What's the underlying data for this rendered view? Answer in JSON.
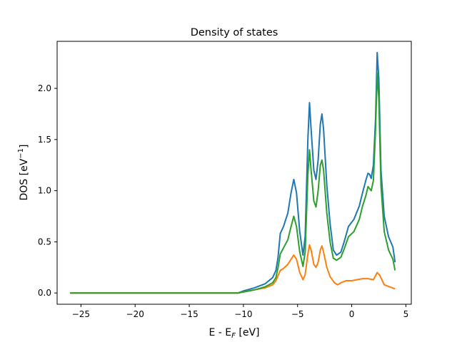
{
  "chart_data": {
    "type": "line",
    "title": "Density of states",
    "xlabel": {
      "main": "E - E",
      "sub": "F",
      "unit": " [eV]"
    },
    "ylabel": {
      "main": "DOS [eV",
      "sup": "−1",
      "end": "]"
    },
    "xlim": [
      -27.2,
      5.5
    ],
    "ylim": [
      -0.11,
      2.46
    ],
    "xticks": [
      -25,
      -20,
      -15,
      -10,
      -5,
      0,
      5
    ],
    "xtick_labels": [
      "−25",
      "−20",
      "−15",
      "−10",
      "−5",
      "0",
      "5"
    ],
    "yticks": [
      0.0,
      0.5,
      1.0,
      1.5,
      2.0
    ],
    "ytick_labels": [
      "0.0",
      "0.5",
      "1.0",
      "1.5",
      "2.0"
    ],
    "grid": false,
    "series": [
      {
        "color": "#1f77b4",
        "points": [
          [
            -26,
            0
          ],
          [
            -10.5,
            0
          ],
          [
            -10,
            0.02
          ],
          [
            -9,
            0.05
          ],
          [
            -8,
            0.09
          ],
          [
            -7.3,
            0.15
          ],
          [
            -7,
            0.22
          ],
          [
            -6.8,
            0.35
          ],
          [
            -6.6,
            0.58
          ],
          [
            -6.3,
            0.65
          ],
          [
            -5.9,
            0.78
          ],
          [
            -5.6,
            0.98
          ],
          [
            -5.35,
            1.11
          ],
          [
            -5.1,
            0.98
          ],
          [
            -4.8,
            0.6
          ],
          [
            -4.5,
            0.37
          ],
          [
            -4.3,
            0.55
          ],
          [
            -4.05,
            1.5
          ],
          [
            -3.9,
            1.86
          ],
          [
            -3.75,
            1.6
          ],
          [
            -3.5,
            1.2
          ],
          [
            -3.3,
            1.11
          ],
          [
            -3.1,
            1.3
          ],
          [
            -2.9,
            1.65
          ],
          [
            -2.75,
            1.75
          ],
          [
            -2.6,
            1.6
          ],
          [
            -2.3,
            1.05
          ],
          [
            -2,
            0.68
          ],
          [
            -1.7,
            0.42
          ],
          [
            -1.4,
            0.37
          ],
          [
            -1,
            0.4
          ],
          [
            -0.7,
            0.5
          ],
          [
            -0.3,
            0.65
          ],
          [
            0.2,
            0.72
          ],
          [
            0.7,
            0.85
          ],
          [
            1,
            0.98
          ],
          [
            1.3,
            1.1
          ],
          [
            1.5,
            1.17
          ],
          [
            1.65,
            1.16
          ],
          [
            1.8,
            1.12
          ],
          [
            2,
            1.25
          ],
          [
            2.2,
            1.7
          ],
          [
            2.35,
            2.35
          ],
          [
            2.5,
            2.1
          ],
          [
            2.7,
            1.2
          ],
          [
            3,
            0.75
          ],
          [
            3.4,
            0.55
          ],
          [
            3.8,
            0.45
          ],
          [
            4,
            0.3
          ]
        ]
      },
      {
        "color": "#ff7f0e",
        "points": [
          [
            -26,
            0
          ],
          [
            -10.5,
            0
          ],
          [
            -10,
            0.01
          ],
          [
            -9,
            0.03
          ],
          [
            -8,
            0.05
          ],
          [
            -7.3,
            0.08
          ],
          [
            -7,
            0.12
          ],
          [
            -6.8,
            0.17
          ],
          [
            -6.6,
            0.22
          ],
          [
            -6.3,
            0.24
          ],
          [
            -5.9,
            0.28
          ],
          [
            -5.6,
            0.33
          ],
          [
            -5.35,
            0.37
          ],
          [
            -5.1,
            0.33
          ],
          [
            -4.8,
            0.2
          ],
          [
            -4.5,
            0.13
          ],
          [
            -4.3,
            0.18
          ],
          [
            -4.05,
            0.38
          ],
          [
            -3.9,
            0.47
          ],
          [
            -3.75,
            0.42
          ],
          [
            -3.5,
            0.28
          ],
          [
            -3.3,
            0.25
          ],
          [
            -3.1,
            0.3
          ],
          [
            -2.9,
            0.42
          ],
          [
            -2.75,
            0.46
          ],
          [
            -2.6,
            0.4
          ],
          [
            -2.3,
            0.25
          ],
          [
            -2,
            0.16
          ],
          [
            -1.6,
            0.1
          ],
          [
            -1.3,
            0.08
          ],
          [
            -1,
            0.1
          ],
          [
            -0.5,
            0.12
          ],
          [
            0,
            0.12
          ],
          [
            0.5,
            0.13
          ],
          [
            1,
            0.14
          ],
          [
            1.5,
            0.14
          ],
          [
            2,
            0.13
          ],
          [
            2.35,
            0.2
          ],
          [
            2.6,
            0.17
          ],
          [
            3,
            0.08
          ],
          [
            3.5,
            0.06
          ],
          [
            4,
            0.04
          ]
        ]
      },
      {
        "color": "#2ca02c",
        "points": [
          [
            -26,
            0
          ],
          [
            -10.5,
            0
          ],
          [
            -10,
            0.01
          ],
          [
            -9,
            0.03
          ],
          [
            -8,
            0.06
          ],
          [
            -7.3,
            0.1
          ],
          [
            -7,
            0.15
          ],
          [
            -6.8,
            0.25
          ],
          [
            -6.6,
            0.38
          ],
          [
            -6.3,
            0.44
          ],
          [
            -5.9,
            0.52
          ],
          [
            -5.6,
            0.65
          ],
          [
            -5.35,
            0.75
          ],
          [
            -5.1,
            0.65
          ],
          [
            -4.8,
            0.4
          ],
          [
            -4.5,
            0.26
          ],
          [
            -4.3,
            0.4
          ],
          [
            -4.05,
            1.15
          ],
          [
            -3.9,
            1.4
          ],
          [
            -3.75,
            1.2
          ],
          [
            -3.5,
            0.9
          ],
          [
            -3.3,
            0.84
          ],
          [
            -3.1,
            1
          ],
          [
            -2.9,
            1.25
          ],
          [
            -2.75,
            1.3
          ],
          [
            -2.6,
            1.2
          ],
          [
            -2.3,
            0.78
          ],
          [
            -2,
            0.5
          ],
          [
            -1.7,
            0.34
          ],
          [
            -1.4,
            0.32
          ],
          [
            -1,
            0.35
          ],
          [
            -0.7,
            0.43
          ],
          [
            -0.3,
            0.55
          ],
          [
            0.2,
            0.6
          ],
          [
            0.7,
            0.72
          ],
          [
            1,
            0.85
          ],
          [
            1.3,
            0.95
          ],
          [
            1.5,
            1.04
          ],
          [
            1.65,
            1.02
          ],
          [
            1.8,
            1.0
          ],
          [
            2,
            1.1
          ],
          [
            2.2,
            1.6
          ],
          [
            2.35,
            2.15
          ],
          [
            2.5,
            1.9
          ],
          [
            2.7,
            1.05
          ],
          [
            3,
            0.6
          ],
          [
            3.4,
            0.42
          ],
          [
            3.8,
            0.33
          ],
          [
            4,
            0.22
          ]
        ]
      }
    ]
  }
}
